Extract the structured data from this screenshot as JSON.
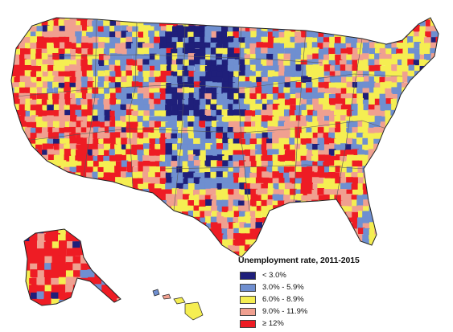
{
  "legend": {
    "title": "Unemployment rate, 2011-2015",
    "items": [
      {
        "label": "< 3.0%",
        "color": "#1f1f7a"
      },
      {
        "label": "3.0% - 5.9%",
        "color": "#6f8fd0"
      },
      {
        "label": "6.0% - 8.9%",
        "color": "#f5ee52"
      },
      {
        "label": "9.0% - 11.9%",
        "color": "#f0a090"
      },
      {
        "label": "≥ 12%",
        "color": "#ee1c24"
      }
    ]
  },
  "colors": {
    "dark_blue": "#1f1f7a",
    "blue": "#6f8fd0",
    "yellow": "#f5ee52",
    "pink": "#f0a090",
    "red": "#ee1c24",
    "border": "#222222"
  }
}
